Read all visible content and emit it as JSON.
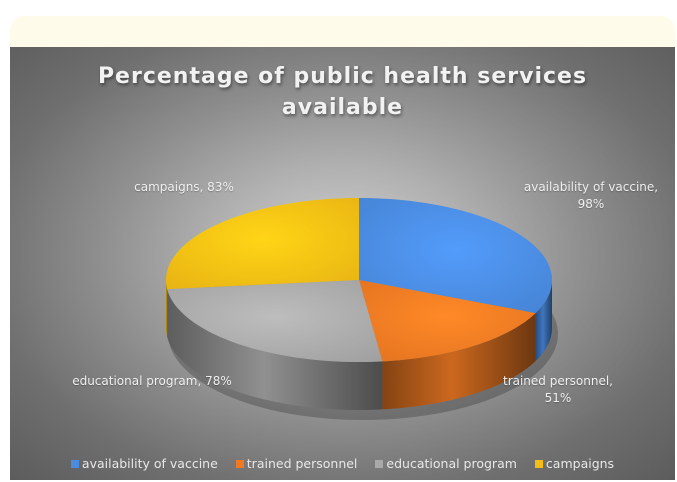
{
  "chart_data": {
    "type": "pie",
    "title": "Percentage of public health services available",
    "categories": [
      "availability of vaccine",
      "trained personnel",
      "educational program",
      "campaigns"
    ],
    "values": [
      98,
      51,
      78,
      83
    ],
    "data_labels": [
      "availability of vaccine, 98%",
      "trained personnel, 51%",
      "educational program, 78%",
      "campaigns, 83%"
    ],
    "unit": "%",
    "colors": [
      "#4a8be0",
      "#f07a23",
      "#a9a9a9",
      "#f5be14"
    ],
    "legend_position": "bottom",
    "style": "3d"
  }
}
